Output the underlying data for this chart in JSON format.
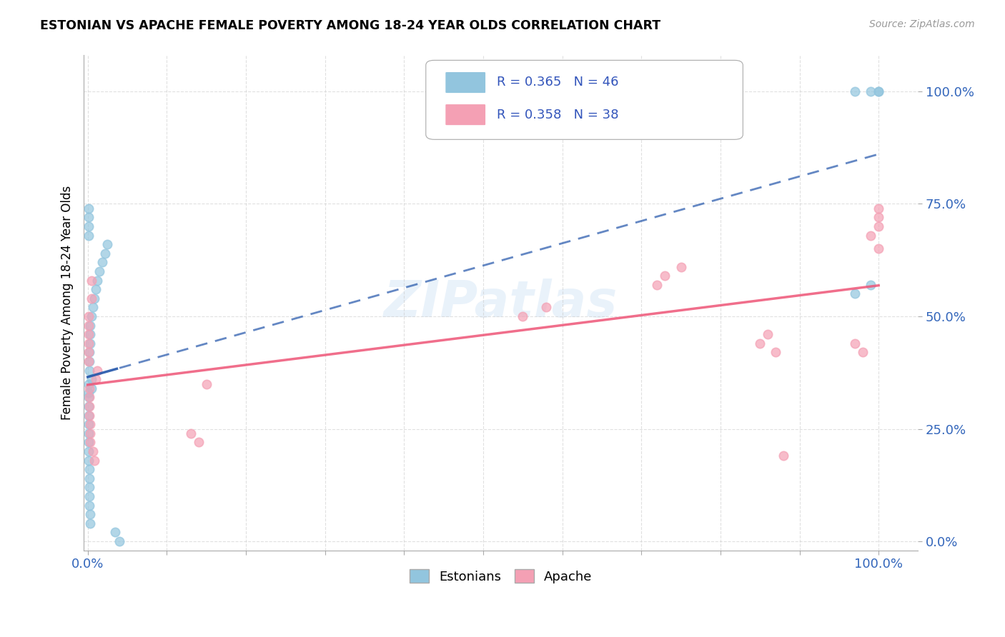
{
  "title": "ESTONIAN VS APACHE FEMALE POVERTY AMONG 18-24 YEAR OLDS CORRELATION CHART",
  "source": "Source: ZipAtlas.com",
  "ylabel": "Female Poverty Among 18-24 Year Olds",
  "x_ticks": [
    0.0,
    0.1,
    0.2,
    0.3,
    0.4,
    0.5,
    0.6,
    0.7,
    0.8,
    0.9,
    1.0
  ],
  "x_tick_labels": [
    "0.0%",
    "",
    "",
    "",
    "",
    "",
    "",
    "",
    "",
    "",
    "100.0%"
  ],
  "y_ticks": [
    0.0,
    0.25,
    0.5,
    0.75,
    1.0
  ],
  "y_tick_labels": [
    "0.0%",
    "25.0%",
    "50.0%",
    "75.0%",
    "100.0%"
  ],
  "estonian_R": 0.365,
  "estonian_N": 46,
  "apache_R": 0.358,
  "apache_N": 38,
  "estonian_color": "#92C5DE",
  "apache_color": "#F4A0B4",
  "estonian_line_color": "#2255AA",
  "apache_line_color": "#EE5577",
  "legend_text_color": "#3355BB",
  "watermark": "ZIPatlas",
  "estonian_x": [
    0.001,
    0.001,
    0.001,
    0.001,
    0.001,
    0.001,
    0.001,
    0.001,
    0.001,
    0.001,
    0.002,
    0.002,
    0.002,
    0.002,
    0.002,
    0.002,
    0.002,
    0.002,
    0.003,
    0.003,
    0.003,
    0.003,
    0.003,
    0.005,
    0.005,
    0.005,
    0.007,
    0.008,
    0.01,
    0.012,
    0.015,
    0.018,
    0.022,
    0.025,
    0.035,
    0.04,
    0.001,
    0.001,
    0.001,
    0.001,
    0.97,
    0.99,
    0.97,
    0.99,
    1.0,
    1.0
  ],
  "estonian_y": [
    0.3,
    0.28,
    0.26,
    0.24,
    0.22,
    0.2,
    0.18,
    0.33,
    0.35,
    0.32,
    0.16,
    0.14,
    0.12,
    0.1,
    0.08,
    0.38,
    0.4,
    0.42,
    0.06,
    0.04,
    0.44,
    0.46,
    0.48,
    0.36,
    0.34,
    0.5,
    0.52,
    0.54,
    0.56,
    0.58,
    0.6,
    0.62,
    0.64,
    0.66,
    0.02,
    0.0,
    0.68,
    0.7,
    0.72,
    0.74,
    1.0,
    1.0,
    0.55,
    0.57,
    1.0,
    1.0
  ],
  "apache_x": [
    0.001,
    0.001,
    0.001,
    0.001,
    0.001,
    0.001,
    0.002,
    0.002,
    0.002,
    0.002,
    0.003,
    0.003,
    0.003,
    0.005,
    0.005,
    0.007,
    0.008,
    0.01,
    0.012,
    0.13,
    0.14,
    0.15,
    0.55,
    0.58,
    0.72,
    0.73,
    0.75,
    0.85,
    0.86,
    0.87,
    0.88,
    0.97,
    0.98,
    0.99,
    1.0,
    1.0,
    1.0,
    1.0
  ],
  "apache_y": [
    0.44,
    0.46,
    0.48,
    0.5,
    0.42,
    0.4,
    0.28,
    0.3,
    0.32,
    0.34,
    0.22,
    0.24,
    0.26,
    0.54,
    0.58,
    0.2,
    0.18,
    0.36,
    0.38,
    0.24,
    0.22,
    0.35,
    0.5,
    0.52,
    0.57,
    0.59,
    0.61,
    0.44,
    0.46,
    0.42,
    0.19,
    0.44,
    0.42,
    0.68,
    0.7,
    0.72,
    0.74,
    0.65
  ]
}
